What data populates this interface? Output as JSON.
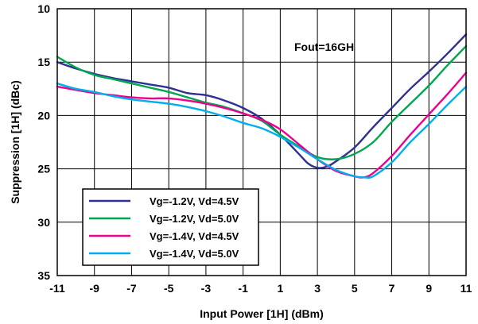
{
  "chart_data": {
    "type": "line",
    "title": "",
    "xlabel": "Input Power [1H] (dBm)",
    "ylabel": "Suppression [1H] (dBc)",
    "xlim": [
      -11,
      11
    ],
    "ylim": [
      10,
      35
    ],
    "y_inverted": true,
    "grid": true,
    "xticks": [
      "-11",
      "-9",
      "-7",
      "-5",
      "-3",
      "-1",
      "1",
      "3",
      "5",
      "7",
      "9",
      "11"
    ],
    "yticks": [
      "10",
      "15",
      "20",
      "25",
      "30",
      "35"
    ],
    "legend_position": "bottom-left",
    "annotation": "Fout=16GH",
    "series": [
      {
        "name": "Vg=-1.2V, Vd=4.5V",
        "color": "#2e3192",
        "x": [
          -11,
          -10,
          -9,
          -8,
          -7,
          -6,
          -5,
          -4,
          -3,
          -2,
          -1,
          0,
          1,
          2,
          2.5,
          3,
          3.5,
          4,
          5,
          6,
          7,
          8,
          9,
          10,
          11
        ],
        "y": [
          15.0,
          15.6,
          16.1,
          16.5,
          16.8,
          17.1,
          17.4,
          17.9,
          18.1,
          18.6,
          19.3,
          20.3,
          21.8,
          23.6,
          24.5,
          24.9,
          24.8,
          24.3,
          23.0,
          21.1,
          19.3,
          17.5,
          15.9,
          14.2,
          12.4
        ]
      },
      {
        "name": "Vg=-1.2V, Vd=5.0V",
        "color": "#00a650",
        "x": [
          -11,
          -10,
          -9,
          -8,
          -7,
          -6,
          -5,
          -4,
          -3,
          -2,
          -1,
          0,
          1,
          2,
          3,
          4,
          5,
          6,
          7,
          8,
          9,
          10,
          11
        ],
        "y": [
          14.5,
          15.5,
          16.2,
          16.6,
          17.0,
          17.4,
          17.8,
          18.3,
          18.8,
          19.2,
          19.8,
          20.5,
          21.8,
          22.9,
          23.9,
          24.1,
          23.6,
          22.5,
          20.6,
          18.9,
          17.2,
          15.3,
          13.5
        ]
      },
      {
        "name": "Vg=-1.4V, Vd=4.5V",
        "color": "#ec008c",
        "x": [
          -11,
          -10,
          -9,
          -8,
          -7,
          -6,
          -5,
          -4,
          -3,
          -2,
          -1,
          0,
          1,
          2,
          3,
          4,
          5,
          5.5,
          6,
          7,
          8,
          9,
          10,
          11
        ],
        "y": [
          17.3,
          17.6,
          17.9,
          18.1,
          18.3,
          18.4,
          18.4,
          18.6,
          18.9,
          19.3,
          19.8,
          20.4,
          21.3,
          22.7,
          24.1,
          25.2,
          25.7,
          25.8,
          25.4,
          23.8,
          21.8,
          19.9,
          18.0,
          16.0
        ]
      },
      {
        "name": "Vg=-1.4V, Vd=5.0V",
        "color": "#00aeef",
        "x": [
          -11,
          -10,
          -9,
          -8,
          -7,
          -6,
          -5,
          -4,
          -3,
          -2,
          -1,
          0,
          1,
          2,
          3,
          4,
          5,
          5.5,
          6,
          7,
          8,
          9,
          10,
          11
        ],
        "y": [
          17.0,
          17.5,
          17.8,
          18.2,
          18.5,
          18.7,
          18.9,
          19.2,
          19.6,
          20.1,
          20.7,
          21.2,
          22.0,
          23.0,
          24.1,
          25.1,
          25.7,
          25.8,
          25.7,
          24.4,
          22.5,
          20.8,
          19.0,
          17.3
        ]
      }
    ]
  }
}
